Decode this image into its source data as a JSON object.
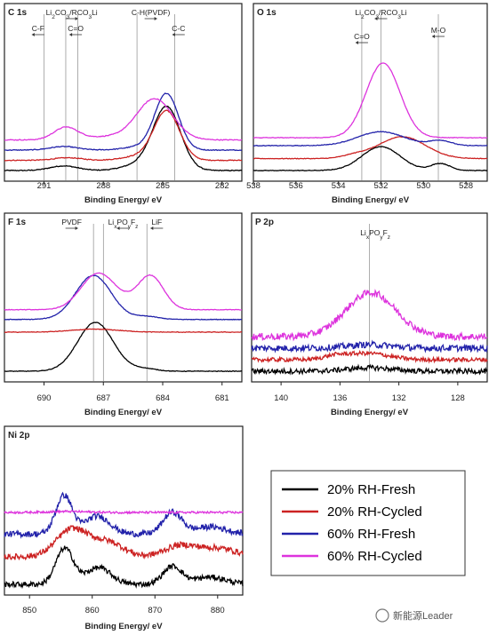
{
  "chart_data": [
    {
      "type": "line",
      "title": "C 1s",
      "xlabel": "Binding Energy/ eV",
      "xlim": [
        293,
        281
      ],
      "reversed": true,
      "xticks": [
        "291",
        "288",
        "285",
        "282"
      ],
      "series": [
        {
          "name": "20% RH-Fresh",
          "color": "#000000",
          "peaks": [
            [
              284.8,
              6.2,
              0.7
            ],
            [
              286.3,
              0.5,
              0.8
            ],
            [
              290.0,
              0.45,
              0.7
            ]
          ],
          "noise": 0.04
        },
        {
          "name": "20% RH-Cycled",
          "color": "#cc2222",
          "peaks": [
            [
              284.8,
              4.8,
              0.65
            ],
            [
              286.3,
              0.35,
              0.8
            ],
            [
              289.8,
              0.25,
              0.7
            ]
          ],
          "noise": 0.04
        },
        {
          "name": "60% RH-Fresh",
          "color": "#2222aa",
          "peaks": [
            [
              284.8,
              5.5,
              0.6
            ],
            [
              286.2,
              0.3,
              0.8
            ],
            [
              290.0,
              0.35,
              0.7
            ]
          ],
          "noise": 0.04
        },
        {
          "name": "60% RH-Cycled",
          "color": "#dd33dd",
          "peaks": [
            [
              285.4,
              4.0,
              0.9
            ],
            [
              289.9,
              1.2,
              0.6
            ],
            [
              287.8,
              0.3,
              1.2
            ]
          ],
          "noise": 0.04
        }
      ],
      "annotations": [
        {
          "text": "C-F",
          "x": 291.3,
          "dir": "left"
        },
        {
          "text": "C=O",
          "x": 289.4,
          "dir": "left"
        },
        {
          "text": "Li2CO3/RCO3Li",
          "sub": true,
          "x": 289.6,
          "dir": "right"
        },
        {
          "text": "C-H(PVDF)",
          "x": 285.6,
          "dir": "right"
        },
        {
          "text": "C-C",
          "x": 284.2,
          "dir": "left"
        }
      ],
      "vlines": [
        291.0,
        289.9,
        289.3,
        286.3,
        284.4
      ]
    },
    {
      "type": "line",
      "title": "O 1s",
      "xlabel": "Binding Energy/ eV",
      "xlim": [
        538,
        527
      ],
      "reversed": true,
      "xticks": [
        "538",
        "536",
        "534",
        "532",
        "530",
        "528"
      ],
      "series": [
        {
          "name": "20% RH-Fresh",
          "color": "#000000",
          "peaks": [
            [
              532.0,
              2.4,
              0.9
            ],
            [
              529.2,
              0.7,
              0.45
            ]
          ],
          "noise": 0.03
        },
        {
          "name": "20% RH-Cycled",
          "color": "#cc2222",
          "peaks": [
            [
              531.0,
              2.2,
              1.1
            ],
            [
              533.2,
              0.3,
              0.6
            ]
          ],
          "noise": 0.03
        },
        {
          "name": "60% RH-Fresh",
          "color": "#2222aa",
          "peaks": [
            [
              532.0,
              1.4,
              1.1
            ],
            [
              529.2,
              0.5,
              0.5
            ]
          ],
          "noise": 0.03
        },
        {
          "name": "60% RH-Cycled",
          "color": "#dd33dd",
          "peaks": [
            [
              531.9,
              7.5,
              0.8
            ]
          ],
          "noise": 0.03
        }
      ],
      "annotations": [
        {
          "text": "Li2CO3/RCO3Li",
          "sub": true,
          "x": 532.0,
          "dir": "left"
        },
        {
          "text": "C=O",
          "x": 532.9,
          "dir": "left"
        },
        {
          "text": "M-O",
          "x": 529.3,
          "dir": "left"
        }
      ],
      "vlines": [
        532.9,
        532.0,
        529.3
      ]
    },
    {
      "type": "line",
      "title": "F 1s",
      "xlabel": "Binding Energy/ eV",
      "xlim": [
        692,
        680
      ],
      "reversed": true,
      "xticks": [
        "690",
        "687",
        "684",
        "681"
      ],
      "series": [
        {
          "name": "20% RH-Fresh",
          "color": "#000000",
          "peaks": [
            [
              687.4,
              5.0,
              0.9
            ],
            [
              684.9,
              0.25,
              0.6
            ]
          ],
          "noise": 0.03
        },
        {
          "name": "20% RH-Cycled",
          "color": "#cc2222",
          "peaks": [
            [
              687.4,
              0.3,
              1.2
            ]
          ],
          "noise": 0.03
        },
        {
          "name": "60% RH-Fresh",
          "color": "#2222aa",
          "peaks": [
            [
              687.5,
              4.5,
              0.9
            ],
            [
              684.8,
              0.3,
              0.6
            ]
          ],
          "noise": 0.03
        },
        {
          "name": "60% RH-Cycled",
          "color": "#dd33dd",
          "peaks": [
            [
              687.3,
              3.6,
              0.85
            ],
            [
              684.6,
              3.4,
              0.65
            ],
            [
              686.0,
              0.5,
              0.8
            ]
          ],
          "noise": 0.03
        }
      ],
      "annotations": [
        {
          "text": "PVDF",
          "x": 688.6,
          "dir": "right"
        },
        {
          "text": "LixPOyFz",
          "sub": true,
          "x": 686.0,
          "dir": "left"
        },
        {
          "text": "LiF",
          "x": 684.3,
          "dir": "left"
        }
      ],
      "vlines": [
        687.5,
        687.0,
        684.8
      ]
    },
    {
      "type": "line",
      "title": "P 2p",
      "xlabel": "Binding Energy/ eV",
      "xlim": [
        142,
        126
      ],
      "reversed": true,
      "xticks": [
        "140",
        "136",
        "132",
        "128"
      ],
      "series": [
        {
          "name": "20% RH-Fresh",
          "color": "#000000",
          "peaks": [
            [
              134.0,
              0.3,
              1.5
            ]
          ],
          "noise": 0.22
        },
        {
          "name": "20% RH-Cycled",
          "color": "#cc2222",
          "peaks": [
            [
              134.1,
              0.55,
              1.4
            ],
            [
              136.3,
              0.3,
              0.8
            ]
          ],
          "noise": 0.18
        },
        {
          "name": "60% RH-Fresh",
          "color": "#2222aa",
          "peaks": [
            [
              134.0,
              0.3,
              1.5
            ]
          ],
          "noise": 0.28
        },
        {
          "name": "60% RH-Cycled",
          "color": "#dd33dd",
          "peaks": [
            [
              133.9,
              3.8,
              1.7
            ]
          ],
          "noise": 0.3
        }
      ],
      "annotations": [
        {
          "text": "LixPOyFz",
          "sub": true,
          "x": 133.6,
          "dir": "none"
        }
      ],
      "vlines": [
        134.0
      ]
    },
    {
      "type": "line",
      "title": "Ni 2p",
      "xlabel": "Binding Energy/ eV",
      "xlim": [
        846,
        884
      ],
      "reversed": false,
      "xticks": [
        "850",
        "860",
        "870",
        "880"
      ],
      "series": [
        {
          "name": "20% RH-Fresh",
          "color": "#000000",
          "peaks": [
            [
              855.6,
              3.0,
              1.4
            ],
            [
              861.0,
              1.4,
              2.0
            ],
            [
              872.8,
              1.5,
              1.5
            ],
            [
              878.8,
              0.6,
              2.5
            ]
          ],
          "noise": 0.22
        },
        {
          "name": "20% RH-Cycled",
          "color": "#cc2222",
          "peaks": [
            [
              856.8,
              2.3,
              2.5
            ],
            [
              862.5,
              1.2,
              2.5
            ],
            [
              874.0,
              0.9,
              2.5
            ],
            [
              880.0,
              0.7,
              3.0
            ]
          ],
          "noise": 0.25
        },
        {
          "name": "60% RH-Fresh",
          "color": "#2222aa",
          "peaks": [
            [
              855.5,
              3.2,
              1.3
            ],
            [
              860.8,
              1.5,
              2.0
            ],
            [
              872.8,
              1.8,
              1.5
            ],
            [
              878.8,
              0.6,
              2.5
            ]
          ],
          "noise": 0.25
        },
        {
          "name": "60% RH-Cycled",
          "color": "#dd33dd",
          "peaks": [
            [
              856.0,
              0.08,
              3.0
            ]
          ],
          "noise": 0.09
        }
      ],
      "annotations": [],
      "vlines": []
    }
  ],
  "legend": {
    "placement": "bottom-right",
    "entries": [
      {
        "label": "20% RH-Fresh",
        "color": "#000000"
      },
      {
        "label": "20% RH-Cycled",
        "color": "#cc2222"
      },
      {
        "label": "60% RH-Fresh",
        "color": "#2222aa"
      },
      {
        "label": "60% RH-Cycled",
        "color": "#dd33dd"
      }
    ]
  },
  "watermark": "新能源Leader"
}
